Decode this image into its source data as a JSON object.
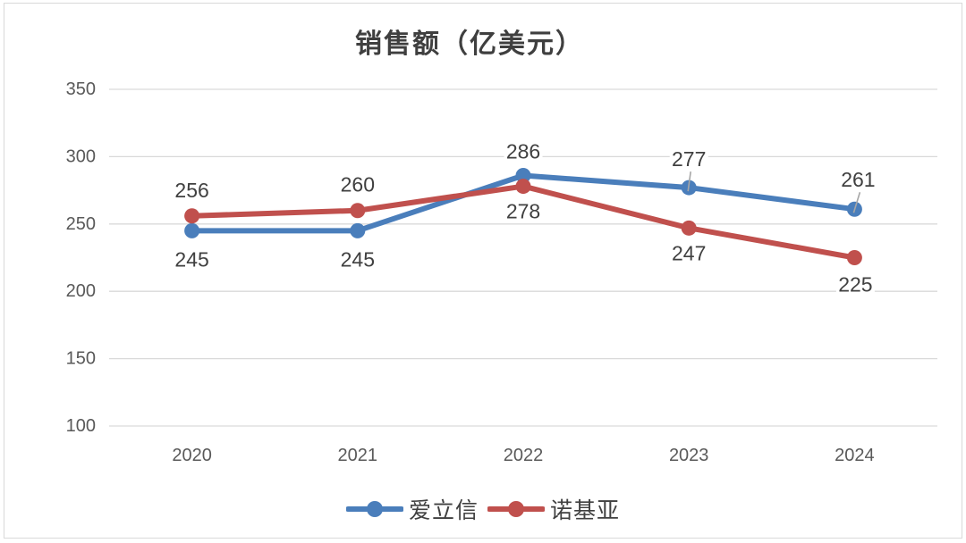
{
  "chart_data": {
    "type": "line",
    "title": "销售额（亿美元）",
    "categories": [
      "2020",
      "2021",
      "2022",
      "2023",
      "2024"
    ],
    "series": [
      {
        "name": "爱立信",
        "color": "#4A7EBB",
        "values": [
          245,
          245,
          286,
          277,
          261
        ],
        "label_offsets": [
          [
            0,
            32
          ],
          [
            0,
            32
          ],
          [
            0,
            -27
          ],
          [
            0,
            -32
          ],
          [
            4,
            -33
          ]
        ],
        "label_leaders": [
          false,
          false,
          false,
          true,
          true
        ]
      },
      {
        "name": "诺基亚",
        "color": "#C0504D",
        "values": [
          256,
          260,
          278,
          247,
          225
        ],
        "label_offsets": [
          [
            0,
            -29
          ],
          [
            0,
            -29
          ],
          [
            0,
            28
          ],
          [
            0,
            28
          ],
          [
            1,
            30
          ]
        ],
        "label_leaders": [
          false,
          false,
          false,
          false,
          false
        ]
      }
    ],
    "ylim": [
      100,
      350
    ],
    "y_ticks": [
      100,
      150,
      200,
      250,
      300,
      350
    ],
    "grid": true,
    "legend_position": "bottom",
    "colors": {
      "grid": "#D9D9D9",
      "border": "#D9D9D9",
      "tick_text": "#595959",
      "data_label_text": "#404040",
      "title_text": "#3F3F3F",
      "legend_text": "#404040",
      "leader_line": "#A6A6A6",
      "background": "#FFFFFF"
    }
  }
}
